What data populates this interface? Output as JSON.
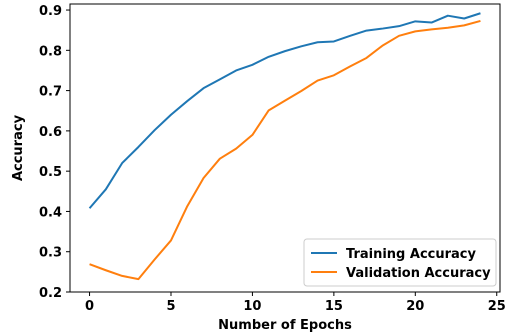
{
  "chart_data": {
    "type": "line",
    "title": "",
    "xlabel": "Number of Epochs",
    "ylabel": "Accuracy",
    "xlim": [
      -1.2,
      25.2
    ],
    "ylim": [
      0.2,
      0.915
    ],
    "xticks": [
      0,
      5,
      10,
      15,
      20,
      25
    ],
    "yticks": [
      0.2,
      0.3,
      0.4,
      0.5,
      0.6,
      0.7,
      0.8,
      0.9
    ],
    "grid": false,
    "legend_position": "lower-right",
    "x": [
      0,
      1,
      2,
      3,
      4,
      5,
      6,
      7,
      8,
      9,
      10,
      11,
      12,
      13,
      14,
      15,
      16,
      17,
      18,
      19,
      20,
      21,
      22,
      23,
      24
    ],
    "series": [
      {
        "name": "Training Accuracy",
        "color": "#1f77b4",
        "values": [
          0.408,
          0.455,
          0.52,
          0.56,
          0.602,
          0.64,
          0.674,
          0.706,
          0.728,
          0.75,
          0.764,
          0.784,
          0.798,
          0.81,
          0.82,
          0.822,
          0.836,
          0.849,
          0.854,
          0.86,
          0.872,
          0.869,
          0.886,
          0.879,
          0.892
        ]
      },
      {
        "name": "Validation Accuracy",
        "color": "#ff7f0e",
        "values": [
          0.269,
          0.254,
          0.24,
          0.232,
          0.281,
          0.328,
          0.413,
          0.483,
          0.531,
          0.556,
          0.59,
          0.651,
          0.675,
          0.699,
          0.725,
          0.738,
          0.76,
          0.781,
          0.812,
          0.836,
          0.847,
          0.852,
          0.856,
          0.862,
          0.873
        ]
      }
    ]
  }
}
